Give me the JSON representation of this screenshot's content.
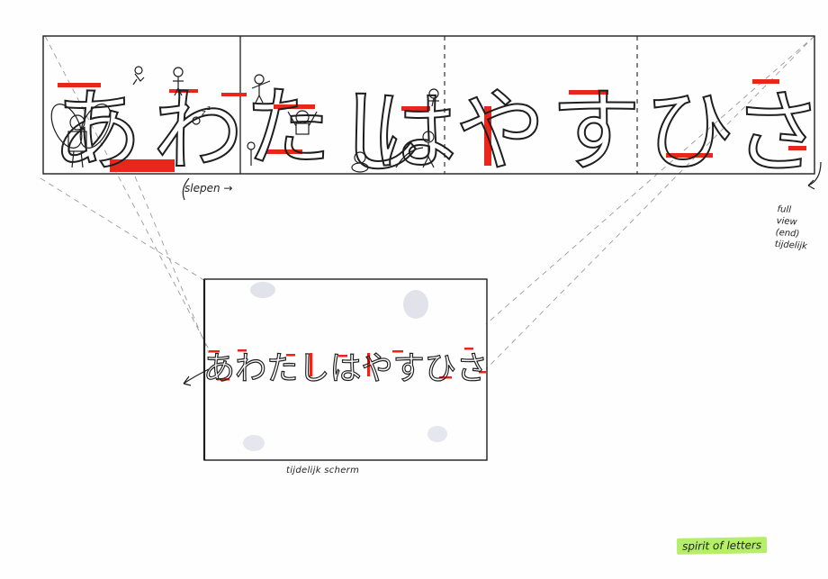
{
  "strip": {
    "letters": [
      "あ",
      "わ",
      "た",
      "し",
      "は",
      "や",
      "す",
      "ひ",
      "さ"
    ],
    "drag_label": "slepen",
    "drag_arrow": "→"
  },
  "screen": {
    "letters": "あわたしはやすひさ",
    "label": "tijdelijk scherm"
  },
  "note": {
    "lines": [
      "full",
      "view",
      "(end)",
      "tijdelijk"
    ]
  },
  "tag": {
    "label": "spirit of letters",
    "color": "#b5ee68"
  },
  "colors": {
    "ink": "#1e1e1e",
    "accent": "#e8261c",
    "guide": "#9a9a9a"
  },
  "icons": [
    "stick-figure-icon",
    "sleep-zz-icon",
    "dashed-divider",
    "curved-arrow-icon"
  ]
}
